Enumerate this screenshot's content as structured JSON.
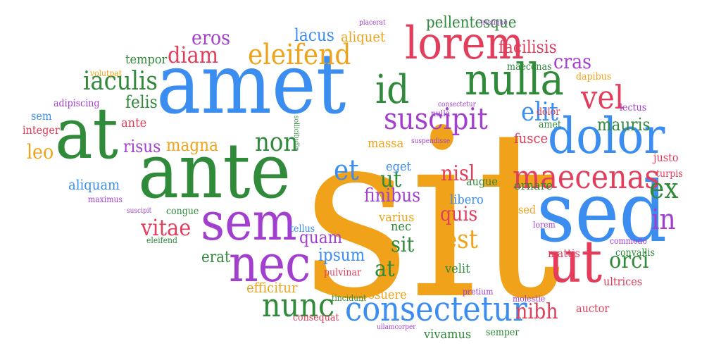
{
  "palette": {
    "blue": "#3b8ef0",
    "green": "#2f8a3a",
    "red": "#e23d5b",
    "purple": "#a23fcf",
    "orange": "#f0a31a",
    "background": "#ffffff"
  },
  "words": [
    {
      "text": "sit",
      "color": "orange"
    },
    {
      "text": "amet",
      "color": "blue"
    },
    {
      "text": "ante",
      "color": "green"
    },
    {
      "text": "at",
      "color": "green"
    },
    {
      "text": "sed",
      "color": "blue"
    },
    {
      "text": "sem",
      "color": "purple"
    },
    {
      "text": "nulla",
      "color": "green"
    },
    {
      "text": "lorem",
      "color": "red"
    },
    {
      "text": "dolor",
      "color": "blue"
    },
    {
      "text": "consectetur",
      "color": "blue"
    },
    {
      "text": "nec",
      "color": "purple"
    },
    {
      "text": "ut",
      "color": "red"
    },
    {
      "text": "eleifend",
      "color": "orange"
    },
    {
      "text": "suscipit",
      "color": "purple"
    },
    {
      "text": "maecenas",
      "color": "red"
    },
    {
      "text": "id",
      "color": "green"
    },
    {
      "text": "iaculis",
      "color": "green"
    },
    {
      "text": "nunc",
      "color": "green"
    },
    {
      "text": "vel",
      "color": "red"
    },
    {
      "text": "non",
      "color": "green"
    },
    {
      "text": "et",
      "color": "blue"
    },
    {
      "text": "ex",
      "color": "green"
    },
    {
      "text": "in",
      "color": "purple"
    },
    {
      "text": "diam",
      "color": "red"
    },
    {
      "text": "eros",
      "color": "purple"
    },
    {
      "text": "elit",
      "color": "blue"
    },
    {
      "text": "vitae",
      "color": "red"
    },
    {
      "text": "orci",
      "color": "green"
    },
    {
      "text": "est",
      "color": "orange"
    },
    {
      "text": "cras",
      "color": "purple"
    },
    {
      "text": "nibh",
      "color": "red"
    },
    {
      "text": "magna",
      "color": "orange"
    },
    {
      "text": "ut",
      "color": "green"
    },
    {
      "text": "at",
      "color": "green"
    },
    {
      "text": "sit",
      "color": "green"
    },
    {
      "text": "nisl",
      "color": "red"
    },
    {
      "text": "finibus",
      "color": "purple"
    },
    {
      "text": "quam",
      "color": "purple"
    },
    {
      "text": "quis",
      "color": "red"
    },
    {
      "text": "mauris",
      "color": "green"
    },
    {
      "text": "ipsum",
      "color": "blue"
    },
    {
      "text": "leo",
      "color": "orange"
    },
    {
      "text": "facilisis",
      "color": "red"
    },
    {
      "text": "fusce",
      "color": "red"
    },
    {
      "text": "risus",
      "color": "purple"
    },
    {
      "text": "felis",
      "color": "green"
    },
    {
      "text": "aliquam",
      "color": "blue"
    },
    {
      "text": "lacus",
      "color": "blue"
    },
    {
      "text": "aliquet",
      "color": "orange"
    },
    {
      "text": "pellentesque",
      "color": "green"
    },
    {
      "text": "erat",
      "color": "green"
    },
    {
      "text": "efficitur",
      "color": "orange"
    },
    {
      "text": "ante",
      "color": "red"
    },
    {
      "text": "massa",
      "color": "orange"
    },
    {
      "text": "velit",
      "color": "green"
    },
    {
      "text": "eget",
      "color": "blue"
    },
    {
      "text": "auctor",
      "color": "red"
    },
    {
      "text": "vivamus",
      "color": "green"
    },
    {
      "text": "varius",
      "color": "orange"
    },
    {
      "text": "libero",
      "color": "blue"
    },
    {
      "text": "augue",
      "color": "green"
    },
    {
      "text": "ornare",
      "color": "green"
    },
    {
      "text": "nec",
      "color": "green"
    },
    {
      "text": "tempor",
      "color": "green"
    },
    {
      "text": "maecenas",
      "color": "green"
    },
    {
      "text": "dapibus",
      "color": "orange"
    },
    {
      "text": "amet",
      "color": "green"
    },
    {
      "text": "lectus",
      "color": "purple"
    },
    {
      "text": "justo",
      "color": "red"
    },
    {
      "text": "dolor",
      "color": "red"
    },
    {
      "text": "mattis",
      "color": "red"
    },
    {
      "text": "convallis",
      "color": "green"
    },
    {
      "text": "ultrices",
      "color": "red"
    },
    {
      "text": "congue",
      "color": "green"
    },
    {
      "text": "integer",
      "color": "red"
    },
    {
      "text": "sem",
      "color": "blue"
    },
    {
      "text": "adipiscing",
      "color": "purple"
    },
    {
      "text": "volutpat",
      "color": "orange"
    },
    {
      "text": "placerat",
      "color": "purple"
    },
    {
      "text": "tristique",
      "color": "purple"
    },
    {
      "text": "commodo",
      "color": "purple"
    },
    {
      "text": "turpis",
      "color": "red"
    },
    {
      "text": "lorem",
      "color": "purple"
    },
    {
      "text": "sed",
      "color": "orange"
    },
    {
      "text": "molestie",
      "color": "purple"
    },
    {
      "text": "pretium",
      "color": "purple"
    },
    {
      "text": "posuere",
      "color": "orange"
    },
    {
      "text": "tincidunt",
      "color": "green"
    },
    {
      "text": "consequat",
      "color": "red"
    },
    {
      "text": "ullamcorper",
      "color": "purple"
    },
    {
      "text": "semper",
      "color": "green"
    },
    {
      "text": "pulvinar",
      "color": "red"
    },
    {
      "text": "tellus",
      "color": "blue"
    },
    {
      "text": "nulla",
      "color": "purple"
    },
    {
      "text": "consectetur",
      "color": "purple"
    },
    {
      "text": "sollicitudin",
      "color": "green"
    },
    {
      "text": "suspendisse",
      "color": "purple"
    },
    {
      "text": "suscipit",
      "color": "purple"
    },
    {
      "text": "eleifend",
      "color": "green"
    },
    {
      "text": "maximus",
      "color": "purple"
    }
  ]
}
